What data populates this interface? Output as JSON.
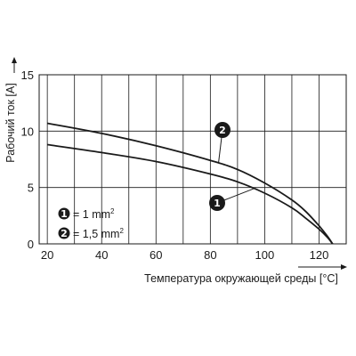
{
  "chart_data": {
    "type": "line",
    "xlabel": "Температура окружающей среды [°C]",
    "ylabel": "Рабочий ток [A]",
    "xlim": [
      17,
      130
    ],
    "ylim": [
      0,
      15
    ],
    "xticks": [
      20,
      40,
      60,
      80,
      100,
      120
    ],
    "yticks": [
      0,
      5,
      10,
      15
    ],
    "grid": "vertical",
    "series": [
      {
        "name": "1",
        "legend_label": "= 1 mm",
        "legend_sup": "2",
        "color": "#1a1a1a",
        "points": [
          [
            20,
            8.8
          ],
          [
            40,
            8.1
          ],
          [
            60,
            7.3
          ],
          [
            80,
            6.2
          ],
          [
            90,
            5.5
          ],
          [
            100,
            4.5
          ],
          [
            110,
            3.2
          ],
          [
            115,
            2.3
          ],
          [
            120,
            1.3
          ],
          [
            123,
            0.6
          ],
          [
            125,
            0
          ]
        ]
      },
      {
        "name": "2",
        "legend_label": "= 1,5 mm",
        "legend_sup": "2",
        "color": "#1a1a1a",
        "points": [
          [
            20,
            10.7
          ],
          [
            40,
            9.8
          ],
          [
            60,
            8.7
          ],
          [
            80,
            7.4
          ],
          [
            90,
            6.6
          ],
          [
            100,
            5.4
          ],
          [
            110,
            3.9
          ],
          [
            115,
            2.9
          ],
          [
            120,
            1.6
          ],
          [
            123,
            0.7
          ],
          [
            125,
            0
          ]
        ]
      }
    ]
  }
}
